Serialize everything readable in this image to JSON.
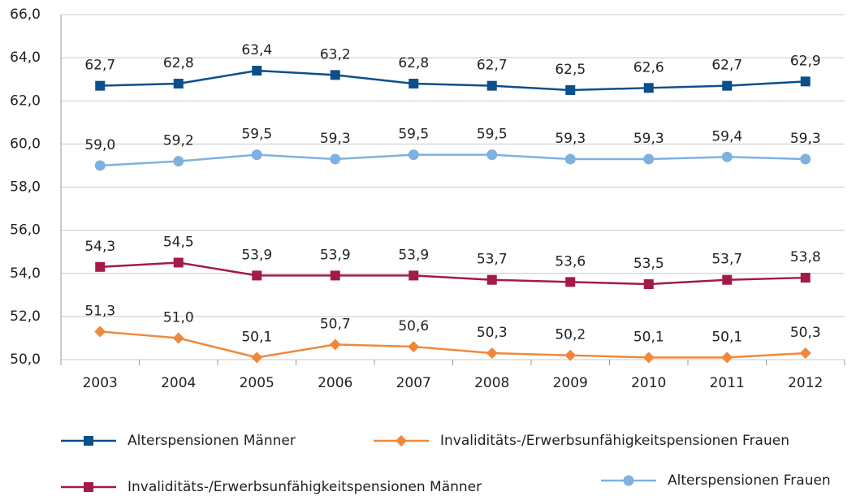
{
  "chart_data": {
    "type": "line",
    "categories": [
      "2003",
      "2004",
      "2005",
      "2006",
      "2007",
      "2008",
      "2009",
      "2010",
      "2011",
      "2012"
    ],
    "ylim": [
      50,
      66
    ],
    "yticks": [
      {
        "value": 50,
        "label": "50,0"
      },
      {
        "value": 52,
        "label": "52,0"
      },
      {
        "value": 54,
        "label": "54,0"
      },
      {
        "value": 56,
        "label": "56,0"
      },
      {
        "value": 58,
        "label": "58,0"
      },
      {
        "value": 60,
        "label": "60,0"
      },
      {
        "value": 62,
        "label": "62,0"
      },
      {
        "value": 64,
        "label": "64,0"
      },
      {
        "value": 66,
        "label": "66,0"
      }
    ],
    "grid": true,
    "series": [
      {
        "name": "Alterspensionen Männer",
        "color": "#0b4f8a",
        "marker": "square",
        "values": [
          62.7,
          62.8,
          63.4,
          63.2,
          62.8,
          62.7,
          62.5,
          62.6,
          62.7,
          62.9
        ],
        "value_labels": [
          "62,7",
          "62,8",
          "63,4",
          "63,2",
          "62,8",
          "62,7",
          "62,5",
          "62,6",
          "62,7",
          "62,9"
        ]
      },
      {
        "name": "Invaliditäts-/Erwerbsunfähigkeitspensionen Frauen",
        "color": "#f0883a",
        "marker": "diamond",
        "values": [
          51.3,
          51.0,
          50.1,
          50.7,
          50.6,
          50.3,
          50.2,
          50.1,
          50.1,
          50.3
        ],
        "value_labels": [
          "51,3",
          "51,0",
          "50,1",
          "50,7",
          "50,6",
          "50,3",
          "50,2",
          "50,1",
          "50,1",
          "50,3"
        ]
      },
      {
        "name": "Invaliditäts-/Erwerbsunfähigkeitspensionen Männer",
        "color": "#a3194a",
        "marker": "square",
        "values": [
          54.3,
          54.5,
          53.9,
          53.9,
          53.9,
          53.7,
          53.6,
          53.5,
          53.7,
          53.8
        ],
        "value_labels": [
          "54,3",
          "54,5",
          "53,9",
          "53,9",
          "53,9",
          "53,7",
          "53,6",
          "53,5",
          "53,7",
          "53,8"
        ]
      },
      {
        "name": "Alterspensionen Frauen",
        "color": "#7fb1e0",
        "marker": "circle",
        "values": [
          59.0,
          59.2,
          59.5,
          59.3,
          59.5,
          59.5,
          59.3,
          59.3,
          59.4,
          59.3
        ],
        "value_labels": [
          "59,0",
          "59,2",
          "59,5",
          "59,3",
          "59,5",
          "59,5",
          "59,3",
          "59,3",
          "59,4",
          "59,3"
        ]
      }
    ]
  }
}
